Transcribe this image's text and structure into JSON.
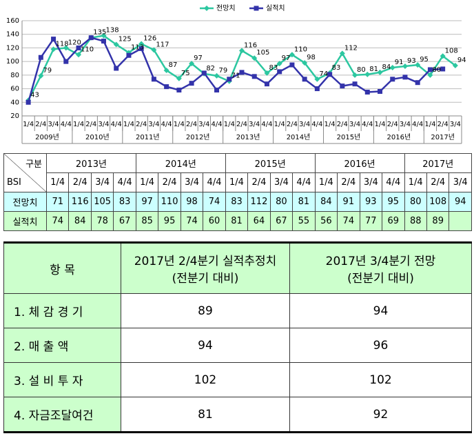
{
  "chart_data": {
    "type": "line",
    "legend": "top",
    "grid": true,
    "category_groups": [
      {
        "label": "2009년",
        "categories": [
          "1/4",
          "2/4",
          "3/4",
          "4/4"
        ]
      },
      {
        "label": "2010년",
        "categories": [
          "1/4",
          "2/4",
          "3/4",
          "4/4"
        ]
      },
      {
        "label": "2011년",
        "categories": [
          "1/4",
          "2/4",
          "3/4",
          "4/4"
        ]
      },
      {
        "label": "2012년",
        "categories": [
          "1/4",
          "2/4",
          "3/4",
          "4/4"
        ]
      },
      {
        "label": "2013년",
        "categories": [
          "1/4",
          "2/4",
          "3/4",
          "4/4"
        ]
      },
      {
        "label": "2014년",
        "categories": [
          "1/4",
          "2/4",
          "3/4",
          "4/4"
        ]
      },
      {
        "label": "2015년",
        "categories": [
          "1/4",
          "2/4",
          "3/4",
          "4/4"
        ]
      },
      {
        "label": "2016년",
        "categories": [
          "1/4",
          "2/4",
          "3/4",
          "4/4"
        ]
      },
      {
        "label": "2017년",
        "categories": [
          "1/4",
          "2/4",
          "3/4"
        ]
      }
    ],
    "series": [
      {
        "name": "전망치",
        "color": "#2cc7a0",
        "marker": "diamond",
        "data_labels": true,
        "values": [
          43,
          79,
          118,
          120,
          110,
          135,
          138,
          125,
          113,
          126,
          117,
          87,
          75,
          97,
          82,
          79,
          71,
          116,
          105,
          83,
          97,
          110,
          98,
          74,
          83,
          112,
          80,
          81,
          84,
          91,
          93,
          95,
          80,
          108,
          94
        ]
      },
      {
        "name": "실적치",
        "color": "#3333aa",
        "marker": "square",
        "data_labels": false,
        "values": [
          40,
          106,
          133,
          100,
          120,
          135,
          130,
          90,
          109,
          119,
          74,
          63,
          58,
          68,
          83,
          58,
          74,
          84,
          78,
          67,
          85,
          95,
          74,
          60,
          81,
          64,
          67,
          55,
          56,
          74,
          77,
          69,
          88,
          89,
          null
        ]
      }
    ],
    "ylim": [
      20,
      160
    ],
    "yticks": [
      20,
      40,
      60,
      80,
      100,
      120,
      140,
      160
    ]
  },
  "table1": {
    "corner_top": "구분",
    "corner_bottom": "BSI",
    "years": [
      {
        "label": "2013년",
        "quarters": [
          "1/4",
          "2/4",
          "3/4",
          "4/4"
        ]
      },
      {
        "label": "2014년",
        "quarters": [
          "1/4",
          "2/4",
          "3/4",
          "4/4"
        ]
      },
      {
        "label": "2015년",
        "quarters": [
          "1/4",
          "2/4",
          "3/4",
          "4/4"
        ]
      },
      {
        "label": "2016년",
        "quarters": [
          "1/4",
          "2/4",
          "3/4",
          "4/4"
        ]
      },
      {
        "label": "2017년",
        "quarters": [
          "1/4",
          "2/4",
          "3/4"
        ]
      }
    ],
    "rows": [
      {
        "label": "전망치",
        "values": [
          71,
          116,
          105,
          83,
          97,
          110,
          98,
          74,
          83,
          112,
          80,
          81,
          84,
          91,
          93,
          95,
          80,
          108,
          94
        ]
      },
      {
        "label": "실적치",
        "values": [
          74,
          84,
          78,
          67,
          85,
          95,
          74,
          60,
          81,
          64,
          67,
          55,
          56,
          74,
          77,
          69,
          88,
          89
        ]
      }
    ]
  },
  "table2": {
    "columns": [
      [
        "항 목"
      ],
      [
        "2017년 2/4분기 실적추정치",
        "(전분기 대비)"
      ],
      [
        "2017년 3/4분기 전망",
        "(전분기 대비)"
      ]
    ],
    "rows": [
      {
        "label": "1. 체 감 경 기",
        "values": [
          89,
          94
        ]
      },
      {
        "label": "2. 매 출 액",
        "values": [
          94,
          96
        ]
      },
      {
        "label": "3. 설 비 투 자",
        "values": [
          102,
          102
        ]
      },
      {
        "label": "4. 자금조달여건",
        "values": [
          81,
          92
        ]
      }
    ]
  }
}
